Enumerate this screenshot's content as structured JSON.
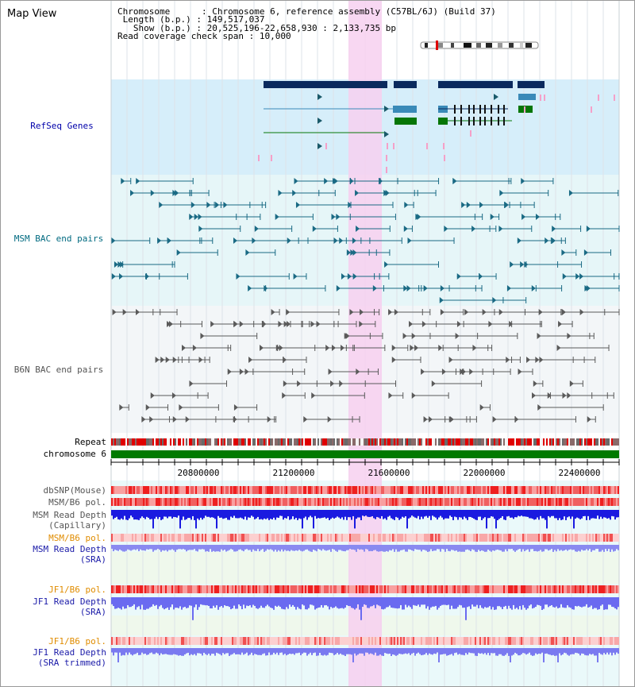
{
  "map_title": "Map View",
  "info": {
    "chromosome_label": "Chromosome",
    "chromosome_value": "Chromosome 6, reference assembly (C57BL/6J) (Build 37)",
    "length_label": "Length (b.p.)",
    "length_value": "149,517,037",
    "show_label": "Show (b.p.)",
    "show_value": "20,525,196-22,658,930 : 2,133,735 bp",
    "coverage_label": "Read coverage check span",
    "coverage_value": "10,000"
  },
  "tracks": {
    "refseq": "RefSeq Genes",
    "msm_bac": "MSM BAC end pairs",
    "b6n_bac": "B6N BAC end pairs",
    "repeat": "Repeat",
    "chromosome": "chromosome 6",
    "dbsnp": "dbSNP(Mouse)",
    "msm_b6_pol_1": "MSM/B6 pol.",
    "msm_read_depth_cap_1": "MSM Read Depth",
    "msm_read_depth_cap_2": "(Capillary)",
    "msm_b6_pol_2": "MSM/B6 pol.",
    "msm_read_depth_sra_1": "MSM Read Depth",
    "msm_read_depth_sra_2": "(SRA)",
    "jf1_b6_pol_1": "JF1/B6 pol.",
    "jf1_read_depth_sra_1": "JF1 Read Depth",
    "jf1_read_depth_sra_2": "(SRA)",
    "jf1_b6_pol_2": "JF1/B6 pol.",
    "jf1_read_depth_trim_1": "JF1 Read Depth",
    "jf1_read_depth_trim_2": "(SRA trimmed)"
  },
  "axis": {
    "ticks": [
      "20800000",
      "21200000",
      "21600000",
      "22000000",
      "22400000"
    ]
  },
  "colors": {
    "refseq_label": "#0000aa",
    "msm_label": "#006a80",
    "b6n_label": "#555555",
    "orange_label": "#e08c00",
    "blue_label": "#1a1aa8",
    "highlight": "#f7d0f0",
    "chromosome_bar": "#007a00"
  }
}
